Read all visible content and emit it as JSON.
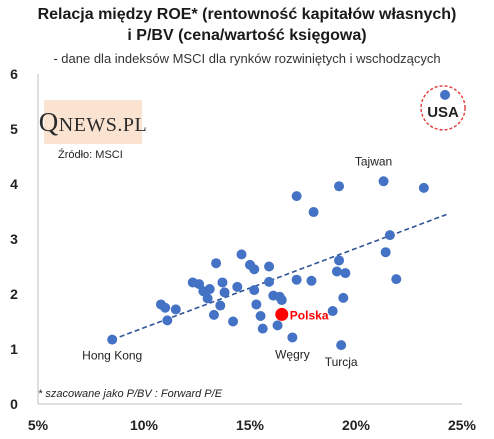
{
  "title": {
    "line1": "Relacja między ROE* (rentowność kapitałów własnych)",
    "line2": "i P/BV (cena/wartość księgowa)",
    "subtitle": "- dane dla indeksów MSCI dla rynków rozwiniętych i wschodzących"
  },
  "logo": {
    "text": "QNEWS.PL",
    "first": "Q",
    "rest": "NEWS.PL"
  },
  "source": "Źródło: MSCI",
  "footnote": "* szacowane jako P/BV : Forward P/E",
  "colors": {
    "point": "#4472c4",
    "highlight": "#ff0000",
    "trend": "#2e5597",
    "usa_circle": "#e23b3b"
  },
  "chart_data": {
    "type": "scatter",
    "xlim": [
      0.05,
      0.25
    ],
    "ylim": [
      0,
      6
    ],
    "x_ticks": [
      "5%",
      "10%",
      "15%",
      "20%",
      "25%"
    ],
    "x_tick_values": [
      0.05,
      0.1,
      0.15,
      0.2,
      0.25
    ],
    "y_ticks": [
      "0",
      "1",
      "2",
      "3",
      "4",
      "5",
      "6"
    ],
    "y_tick_values": [
      0,
      1,
      2,
      3,
      4,
      5,
      6
    ],
    "grid": false,
    "trendline": {
      "style": "dashed",
      "start": [
        0.085,
        1.17
      ],
      "end": [
        0.243,
        3.45
      ]
    },
    "points": [
      {
        "x": 0.085,
        "y": 1.17,
        "label": "Hong Kong"
      },
      {
        "x": 0.108,
        "y": 1.81
      },
      {
        "x": 0.11,
        "y": 1.75
      },
      {
        "x": 0.111,
        "y": 1.52
      },
      {
        "x": 0.115,
        "y": 1.72
      },
      {
        "x": 0.123,
        "y": 2.21
      },
      {
        "x": 0.126,
        "y": 2.18
      },
      {
        "x": 0.128,
        "y": 2.05
      },
      {
        "x": 0.13,
        "y": 1.92
      },
      {
        "x": 0.131,
        "y": 2.09
      },
      {
        "x": 0.133,
        "y": 1.62
      },
      {
        "x": 0.134,
        "y": 2.56
      },
      {
        "x": 0.136,
        "y": 1.79
      },
      {
        "x": 0.137,
        "y": 2.21
      },
      {
        "x": 0.138,
        "y": 2.03
      },
      {
        "x": 0.142,
        "y": 1.5
      },
      {
        "x": 0.144,
        "y": 2.13
      },
      {
        "x": 0.146,
        "y": 2.72
      },
      {
        "x": 0.15,
        "y": 2.53
      },
      {
        "x": 0.152,
        "y": 2.45
      },
      {
        "x": 0.152,
        "y": 2.07
      },
      {
        "x": 0.153,
        "y": 1.81
      },
      {
        "x": 0.155,
        "y": 1.6
      },
      {
        "x": 0.156,
        "y": 1.37
      },
      {
        "x": 0.159,
        "y": 2.5
      },
      {
        "x": 0.159,
        "y": 2.22
      },
      {
        "x": 0.161,
        "y": 1.97
      },
      {
        "x": 0.163,
        "y": 1.43
      },
      {
        "x": 0.164,
        "y": 1.95
      },
      {
        "x": 0.165,
        "y": 1.89
      },
      {
        "x": 0.172,
        "y": 3.78
      },
      {
        "x": 0.172,
        "y": 2.26
      },
      {
        "x": 0.17,
        "y": 1.21,
        "label": "Węgry"
      },
      {
        "x": 0.18,
        "y": 3.49
      },
      {
        "x": 0.179,
        "y": 2.24
      },
      {
        "x": 0.189,
        "y": 1.69
      },
      {
        "x": 0.191,
        "y": 2.41
      },
      {
        "x": 0.192,
        "y": 2.61
      },
      {
        "x": 0.192,
        "y": 3.96
      },
      {
        "x": 0.193,
        "y": 1.07,
        "label": "Turcja"
      },
      {
        "x": 0.194,
        "y": 1.93
      },
      {
        "x": 0.195,
        "y": 2.38
      },
      {
        "x": 0.213,
        "y": 4.05,
        "label": "Tajwan"
      },
      {
        "x": 0.214,
        "y": 2.76
      },
      {
        "x": 0.216,
        "y": 3.07
      },
      {
        "x": 0.219,
        "y": 2.27
      },
      {
        "x": 0.232,
        "y": 3.93
      },
      {
        "x": 0.242,
        "y": 5.62,
        "label": "USA",
        "circled": true
      },
      {
        "x": 0.165,
        "y": 1.63,
        "label": "Polska",
        "highlight": true
      }
    ]
  }
}
